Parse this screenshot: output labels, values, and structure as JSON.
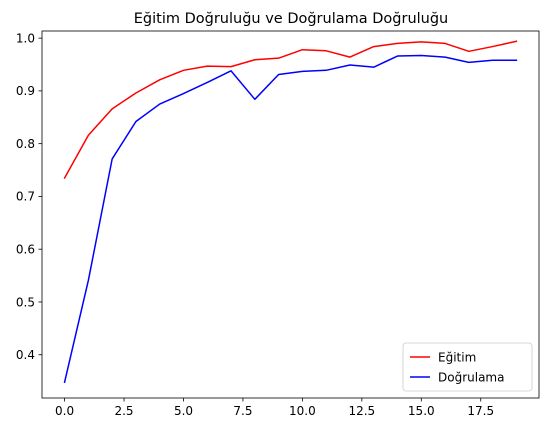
{
  "chart_data": {
    "type": "line",
    "title": "Eğitim Doğruluğu ve Doğrulama Doğruluğu",
    "xlabel": "",
    "ylabel": "",
    "xlim": [
      -0.95,
      19.95
    ],
    "ylim": [
      0.318,
      1.0135
    ],
    "xticks": [
      0.0,
      2.5,
      5.0,
      7.5,
      10.0,
      12.5,
      15.0,
      17.5
    ],
    "xtick_labels": [
      "0.0",
      "2.5",
      "5.0",
      "7.5",
      "10.0",
      "12.5",
      "15.0",
      "17.5"
    ],
    "yticks": [
      0.4,
      0.5,
      0.6,
      0.7,
      0.8,
      0.9,
      1.0
    ],
    "ytick_labels": [
      "0.4",
      "0.5",
      "0.6",
      "0.7",
      "0.8",
      "0.9",
      "1.0"
    ],
    "grid": false,
    "legend_position": "lower-right",
    "x": [
      0,
      1,
      2,
      3,
      4,
      5,
      6,
      7,
      8,
      9,
      10,
      11,
      12,
      13,
      14,
      15,
      16,
      17,
      18,
      19
    ],
    "series": [
      {
        "name": "Eğitim",
        "color": "#ff0000",
        "values": [
          0.735,
          0.816,
          0.866,
          0.896,
          0.921,
          0.939,
          0.947,
          0.946,
          0.959,
          0.962,
          0.978,
          0.976,
          0.964,
          0.984,
          0.99,
          0.993,
          0.99,
          0.975,
          0.984,
          0.994
        ]
      },
      {
        "name": "Doğrulama",
        "color": "#0000ff",
        "values": [
          0.348,
          0.541,
          0.771,
          0.842,
          0.875,
          0.895,
          0.916,
          0.938,
          0.884,
          0.931,
          0.937,
          0.939,
          0.949,
          0.945,
          0.966,
          0.967,
          0.964,
          0.954,
          0.958,
          0.958
        ]
      }
    ]
  }
}
